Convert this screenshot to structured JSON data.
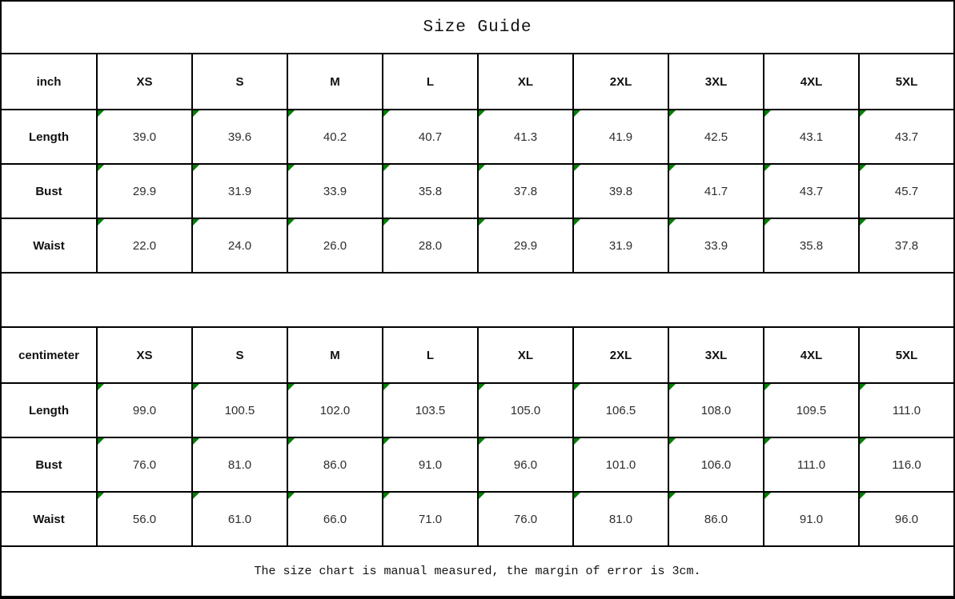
{
  "title": "Size Guide",
  "footer_note": "The size chart is manual measured, the margin of error is 3cm.",
  "marker_color": "#008000",
  "tables": [
    {
      "unit_label": "inch",
      "columns": [
        "XS",
        "S",
        "M",
        "L",
        "XL",
        "2XL",
        "3XL",
        "4XL",
        "5XL"
      ],
      "rows": [
        {
          "label": "Length",
          "values": [
            "39.0",
            "39.6",
            "40.2",
            "40.7",
            "41.3",
            "41.9",
            "42.5",
            "43.1",
            "43.7"
          ]
        },
        {
          "label": "Bust",
          "values": [
            "29.9",
            "31.9",
            "33.9",
            "35.8",
            "37.8",
            "39.8",
            "41.7",
            "43.7",
            "45.7"
          ]
        },
        {
          "label": "Waist",
          "values": [
            "22.0",
            "24.0",
            "26.0",
            "28.0",
            "29.9",
            "31.9",
            "33.9",
            "35.8",
            "37.8"
          ]
        }
      ]
    },
    {
      "unit_label": "centimeter",
      "columns": [
        "XS",
        "S",
        "M",
        "L",
        "XL",
        "2XL",
        "3XL",
        "4XL",
        "5XL"
      ],
      "rows": [
        {
          "label": "Length",
          "values": [
            "99.0",
            "100.5",
            "102.0",
            "103.5",
            "105.0",
            "106.5",
            "108.0",
            "109.5",
            "111.0"
          ]
        },
        {
          "label": "Bust",
          "values": [
            "76.0",
            "81.0",
            "86.0",
            "91.0",
            "96.0",
            "101.0",
            "106.0",
            "111.0",
            "116.0"
          ]
        },
        {
          "label": "Waist",
          "values": [
            "56.0",
            "61.0",
            "66.0",
            "71.0",
            "76.0",
            "81.0",
            "86.0",
            "91.0",
            "96.0"
          ]
        }
      ]
    }
  ]
}
